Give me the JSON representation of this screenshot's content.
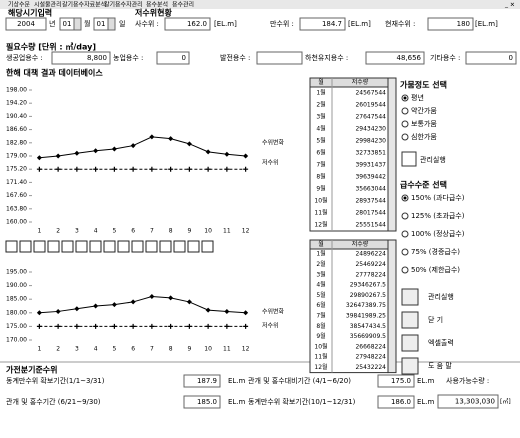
{
  "menu": [
    "기상수문",
    "시설물관리",
    "갈기용수자료분석",
    "갈기용수자관리",
    "용수분석",
    "용수관리"
  ],
  "date_input": {
    "title": "해당시기입력",
    "year": "2004",
    "year_unit": "년",
    "month": "01",
    "month_unit": "월",
    "day": "01",
    "day_unit": "일"
  },
  "reservoir": {
    "title": "저수위현황",
    "fields": [
      {
        "label": "사수위 :",
        "value": "162.0",
        "unit": "[EL.m]"
      },
      {
        "label": "만수위 :",
        "value": "184.7",
        "unit": "[EL.m]"
      },
      {
        "label": "현재수위 :",
        "value": "180",
        "unit": "[EL.m]"
      }
    ]
  },
  "demand": {
    "title": "필요수량 [단위 : ㎥/day]",
    "fields": [
      {
        "label": "생공업용수 :",
        "value": "8,800"
      },
      {
        "label": "농업용수 :",
        "value": "0"
      },
      {
        "label": "발전용수 :"
      },
      {
        "label": "하천유지용수 :",
        "value": "48,656"
      },
      {
        "label": "기타용수 :",
        "value": "0"
      }
    ]
  },
  "database_title": "한해 대책 결과 데이터베이스",
  "chart_data": [
    {
      "type": "line",
      "categories": [
        "1",
        "2",
        "3",
        "4",
        "5",
        "6",
        "7",
        "8",
        "9",
        "10",
        "11",
        "12"
      ],
      "ylim": [
        160,
        198
      ],
      "yticks": [
        {
          "value": 198,
          "label": "198.00"
        },
        {
          "value": 194.2,
          "label": "194.20"
        },
        {
          "value": 190.4,
          "label": "190.40"
        },
        {
          "value": 186.6,
          "label": "186.60"
        },
        {
          "value": 182.8,
          "label": "182.80"
        },
        {
          "value": 179,
          "label": "179.00"
        },
        {
          "value": 175.2,
          "label": "175.20"
        },
        {
          "value": 171.4,
          "label": "171.40"
        },
        {
          "value": 167.6,
          "label": "167.60"
        },
        {
          "value": 163.8,
          "label": "163.80"
        },
        {
          "value": 160,
          "label": "160.00"
        }
      ],
      "series": [
        {
          "name": "수위변화",
          "color": "#000000",
          "marker": "diamond",
          "values": [
            178.5,
            179,
            179.8,
            180.5,
            181,
            182,
            184.5,
            184,
            182.5,
            180.2,
            179.5,
            179
          ]
        },
        {
          "name": "저수위",
          "color": "#000000",
          "marker": "plus",
          "values": [
            175.2,
            175.2,
            175.2,
            175.2,
            175.2,
            175.2,
            175.2,
            175.2,
            175.2,
            175.2,
            175.2,
            175.2
          ]
        }
      ]
    },
    {
      "type": "line",
      "categories": [
        "1",
        "2",
        "3",
        "4",
        "5",
        "6",
        "7",
        "8",
        "9",
        "10",
        "11",
        "12"
      ],
      "ylim": [
        170,
        195
      ],
      "yticks": [
        {
          "value": 195,
          "label": "195.00"
        },
        {
          "value": 190,
          "label": "190.00"
        },
        {
          "value": 185,
          "label": "185.00"
        },
        {
          "value": 180,
          "label": "180.00"
        },
        {
          "value": 175,
          "label": "175.00"
        },
        {
          "value": 170,
          "label": "170.00"
        }
      ],
      "series": [
        {
          "name": "수위변화",
          "color": "#000000",
          "marker": "diamond",
          "values": [
            180,
            180.5,
            181.5,
            182.5,
            183,
            184,
            186,
            185.5,
            184,
            181,
            180.5,
            180
          ]
        },
        {
          "name": "저수위",
          "color": "#000000",
          "marker": "plus",
          "values": [
            175,
            175,
            175,
            175,
            175,
            175,
            175,
            175,
            175,
            175,
            175,
            175
          ]
        }
      ]
    }
  ],
  "tables": [
    {
      "header": [
        "월",
        "저수량"
      ],
      "rows": [
        [
          "1월",
          24567544
        ],
        [
          "2월",
          26019544
        ],
        [
          "3월",
          27647544
        ],
        [
          "4월",
          29434230
        ],
        [
          "5월",
          29984230
        ],
        [
          "6월",
          32733851
        ],
        [
          "7월",
          39931437
        ],
        [
          "8월",
          39639442
        ],
        [
          "9월",
          35663044
        ],
        [
          "10월",
          28937544
        ],
        [
          "11월",
          28017544
        ],
        [
          "12월",
          25551544
        ]
      ]
    },
    {
      "header": [
        "월",
        "저수량"
      ],
      "rows": [
        [
          "1월",
          24896224
        ],
        [
          "2월",
          25469224
        ],
        [
          "3월",
          27778224
        ],
        [
          "4월",
          29346267.5
        ],
        [
          "5월",
          29890267.5
        ],
        [
          "6월",
          32647389.75
        ],
        [
          "7월",
          39841989.25
        ],
        [
          "8월",
          38547434.5
        ],
        [
          "9월",
          35669909.5
        ],
        [
          "10월",
          26668224
        ],
        [
          "11월",
          27948224
        ],
        [
          "12월",
          25432224
        ]
      ]
    }
  ],
  "drought": {
    "title": "가뭄정도 선택",
    "options": [
      "평년",
      "약간가뭄",
      "보통가뭄",
      "심한가뭄"
    ],
    "selected": 0,
    "button": "관리실행"
  },
  "supply": {
    "title": "급수수준 선택",
    "options": [
      "150% (과다급수)",
      "125% (초과급수)",
      "100% (정상급수)",
      "75% (경증급수)",
      "50% (제한급수)"
    ],
    "selected": 0
  },
  "buttons": [
    "관리실행",
    "닫 기",
    "엑셀출력",
    "도 움 말"
  ],
  "seasonal": {
    "title": "가전분기준수위",
    "rows": [
      {
        "label": "동계만수위 확보기간(1/1~3/31)",
        "value": "187.9",
        "unit": "EL.m"
      },
      {
        "label": "관개 및 홍수대비기간 (4/1~6/20)",
        "value": "175.0",
        "unit": "EL.m"
      },
      {
        "label": "관개 및 홍수기간 (6/21~9/30)",
        "value": "185.0",
        "unit": "EL.m"
      },
      {
        "label": "동계만수위 확보기간(10/1~12/31)",
        "value": "186.0",
        "unit": "EL.m"
      }
    ],
    "available": {
      "label": "사용가능수량 :",
      "value": "13,303,030",
      "unit": "[㎥]"
    }
  }
}
